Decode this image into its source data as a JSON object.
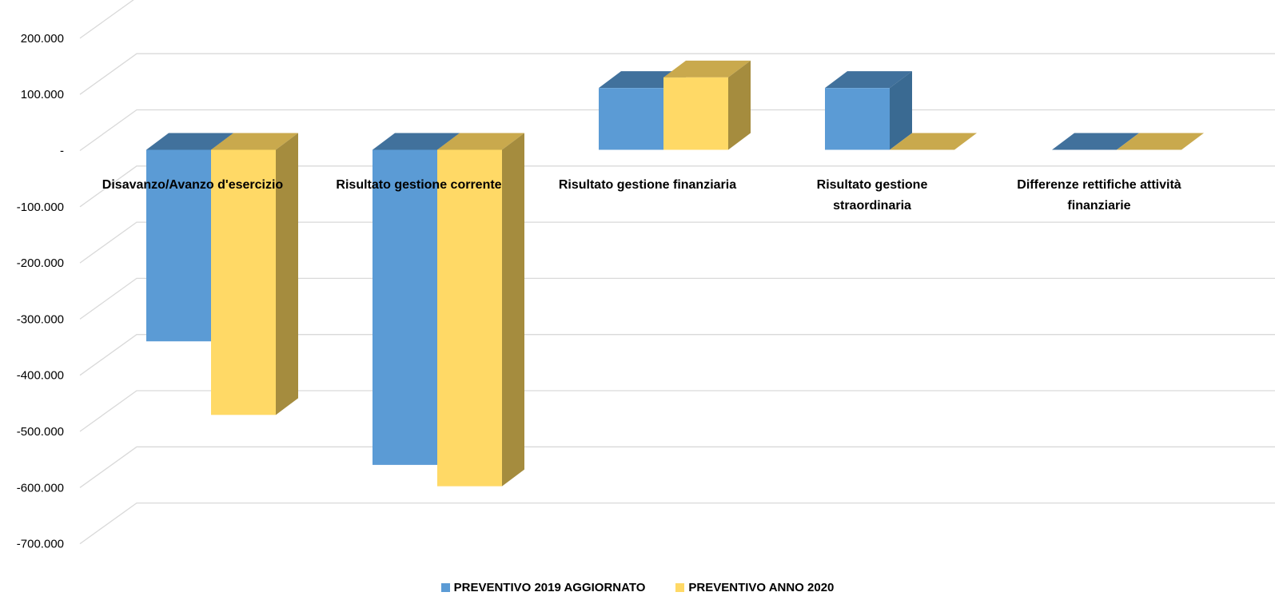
{
  "colors": {
    "series_front": [
      "#5B9BD5",
      "#FFD966"
    ],
    "series_top": [
      "#41719C",
      "#C9A94D"
    ],
    "series_side": [
      "#3A6A92",
      "#A58C3E"
    ],
    "grid": "#D9D9D9"
  },
  "chart_data": {
    "type": "bar",
    "variant": "3d-clustered-column",
    "categories": [
      "Disavanzo/Avanzo d'esercizio",
      "Risultato gestione corrente",
      "Risultato gestione finanziaria",
      "Risultato gestione straordinaria",
      "Differenze rettifiche attività finanziarie"
    ],
    "category_label_lines": [
      [
        "Disavanzo/Avanzo d'esercizio"
      ],
      [
        "Risultato gestione corrente"
      ],
      [
        "Risultato gestione finanziaria"
      ],
      [
        "Risultato gestione",
        "straordinaria"
      ],
      [
        "Differenze rettifiche attività",
        "finanziarie"
      ]
    ],
    "series": [
      {
        "name": "PREVENTIVO 2019 AGGIORNATO",
        "values": [
          -341000,
          -561000,
          110000,
          110000,
          0
        ]
      },
      {
        "name": "PREVENTIVO ANNO 2020",
        "values": [
          -472000,
          -599000,
          129000,
          0,
          0
        ]
      }
    ],
    "yticks": [
      200000,
      100000,
      0,
      -100000,
      -200000,
      -300000,
      -400000,
      -500000,
      -600000,
      -700000
    ],
    "ytick_labels": [
      "200.000",
      "100.000",
      "-",
      "-100.000",
      "-200.000",
      "-300.000",
      "-400.000",
      "-500.000",
      "-600.000",
      "-700.000"
    ],
    "ylim": [
      -700000,
      200000
    ],
    "legend_position": "bottom",
    "grid": true
  }
}
